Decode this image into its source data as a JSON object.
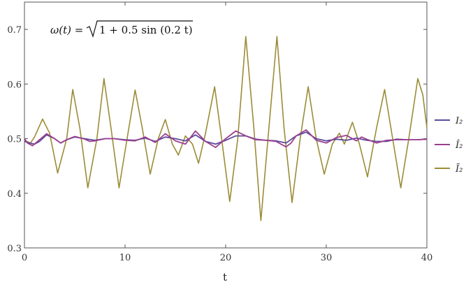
{
  "chart_data": {
    "type": "line",
    "xlabel": "t",
    "ylabel": "",
    "xlim": [
      0,
      40
    ],
    "ylim": [
      0.3,
      0.75
    ],
    "x_ticks": [
      0,
      10,
      20,
      30,
      40
    ],
    "y_ticks": [
      0.3,
      0.4,
      0.5,
      0.6,
      0.7
    ],
    "x_tick_labels": [
      "0",
      "10",
      "20",
      "30",
      "40"
    ],
    "y_tick_labels": [
      "0.3",
      "0.4",
      "0.5",
      "0.6",
      "0.7"
    ],
    "grid": false,
    "legend_position": "right",
    "annotation": {
      "prefix": "ω(t) =",
      "radicand": "1 + 0.5 sin (0.2 t)"
    },
    "series": [
      {
        "name": "I₂",
        "color": "#5b4b9a",
        "points": [
          [
            0,
            0.495
          ],
          [
            0.5,
            0.492
          ],
          [
            1,
            0.49
          ],
          [
            1.5,
            0.495
          ],
          [
            2.2,
            0.507
          ],
          [
            3,
            0.5
          ],
          [
            3.6,
            0.492
          ],
          [
            4.2,
            0.498
          ],
          [
            5,
            0.503
          ],
          [
            6,
            0.5
          ],
          [
            7,
            0.497
          ],
          [
            8,
            0.5
          ],
          [
            9,
            0.5
          ],
          [
            10,
            0.498
          ],
          [
            11,
            0.497
          ],
          [
            12,
            0.501
          ],
          [
            13,
            0.495
          ],
          [
            14,
            0.503
          ],
          [
            15,
            0.5
          ],
          [
            16,
            0.496
          ],
          [
            17,
            0.507
          ],
          [
            18,
            0.495
          ],
          [
            19,
            0.49
          ],
          [
            20,
            0.497
          ],
          [
            21,
            0.505
          ],
          [
            22,
            0.505
          ],
          [
            23,
            0.499
          ],
          [
            24,
            0.497
          ],
          [
            25,
            0.496
          ],
          [
            26,
            0.492
          ],
          [
            27,
            0.505
          ],
          [
            28,
            0.512
          ],
          [
            29,
            0.5
          ],
          [
            30,
            0.496
          ],
          [
            31,
            0.499
          ],
          [
            32,
            0.497
          ],
          [
            33,
            0.501
          ],
          [
            34,
            0.497
          ],
          [
            35,
            0.495
          ],
          [
            36,
            0.495
          ],
          [
            37,
            0.499
          ],
          [
            38,
            0.498
          ],
          [
            39,
            0.498
          ],
          [
            40,
            0.499
          ]
        ]
      },
      {
        "name": "Î₂",
        "color": "#9b3f8f",
        "points": [
          [
            0,
            0.5
          ],
          [
            0.3,
            0.492
          ],
          [
            0.8,
            0.487
          ],
          [
            1.5,
            0.498
          ],
          [
            2.2,
            0.509
          ],
          [
            3,
            0.5
          ],
          [
            3.6,
            0.492
          ],
          [
            4.2,
            0.498
          ],
          [
            5,
            0.504
          ],
          [
            6,
            0.499
          ],
          [
            6.5,
            0.495
          ],
          [
            7,
            0.496
          ],
          [
            8,
            0.5
          ],
          [
            9,
            0.5
          ],
          [
            10,
            0.497
          ],
          [
            11,
            0.496
          ],
          [
            12,
            0.503
          ],
          [
            13,
            0.493
          ],
          [
            14,
            0.509
          ],
          [
            15,
            0.496
          ],
          [
            16,
            0.49
          ],
          [
            17,
            0.514
          ],
          [
            18,
            0.495
          ],
          [
            19,
            0.484
          ],
          [
            20,
            0.5
          ],
          [
            21,
            0.514
          ],
          [
            22,
            0.505
          ],
          [
            23,
            0.498
          ],
          [
            24,
            0.497
          ],
          [
            25,
            0.495
          ],
          [
            26,
            0.485
          ],
          [
            26.5,
            0.492
          ],
          [
            27,
            0.505
          ],
          [
            28,
            0.516
          ],
          [
            29,
            0.497
          ],
          [
            30,
            0.492
          ],
          [
            31,
            0.502
          ],
          [
            32,
            0.506
          ],
          [
            33,
            0.496
          ],
          [
            33.5,
            0.503
          ],
          [
            34,
            0.499
          ],
          [
            35,
            0.492
          ],
          [
            36,
            0.497
          ],
          [
            37,
            0.498
          ],
          [
            38,
            0.498
          ],
          [
            39,
            0.498
          ],
          [
            40,
            0.499
          ]
        ]
      },
      {
        "name": "Ĩ₂",
        "color": "#9b8c37",
        "points": [
          [
            0,
            0.497
          ],
          [
            0.6,
            0.492
          ],
          [
            1,
            0.503
          ],
          [
            1.8,
            0.536
          ],
          [
            2.5,
            0.51
          ],
          [
            3.3,
            0.437
          ],
          [
            4.2,
            0.5
          ],
          [
            4.8,
            0.59
          ],
          [
            5.5,
            0.52
          ],
          [
            6.3,
            0.41
          ],
          [
            7.2,
            0.5
          ],
          [
            7.9,
            0.61
          ],
          [
            8.6,
            0.52
          ],
          [
            9.4,
            0.41
          ],
          [
            10.2,
            0.5
          ],
          [
            11,
            0.589
          ],
          [
            11.7,
            0.52
          ],
          [
            12.5,
            0.435
          ],
          [
            13.3,
            0.5
          ],
          [
            14,
            0.535
          ],
          [
            14.7,
            0.49
          ],
          [
            15.3,
            0.47
          ],
          [
            16,
            0.505
          ],
          [
            16.7,
            0.49
          ],
          [
            17.3,
            0.455
          ],
          [
            18,
            0.51
          ],
          [
            18.9,
            0.595
          ],
          [
            19.6,
            0.5
          ],
          [
            20.4,
            0.385
          ],
          [
            21.2,
            0.5
          ],
          [
            22,
            0.687
          ],
          [
            22.8,
            0.52
          ],
          [
            23.5,
            0.35
          ],
          [
            24.3,
            0.52
          ],
          [
            25.1,
            0.687
          ],
          [
            25.8,
            0.52
          ],
          [
            26.6,
            0.383
          ],
          [
            27.4,
            0.5
          ],
          [
            28.2,
            0.595
          ],
          [
            29,
            0.5
          ],
          [
            29.8,
            0.435
          ],
          [
            30.6,
            0.49
          ],
          [
            31.3,
            0.51
          ],
          [
            31.8,
            0.49
          ],
          [
            32.6,
            0.53
          ],
          [
            33.3,
            0.49
          ],
          [
            34.1,
            0.43
          ],
          [
            35,
            0.52
          ],
          [
            35.8,
            0.59
          ],
          [
            36.6,
            0.5
          ],
          [
            37.4,
            0.41
          ],
          [
            38.2,
            0.5
          ],
          [
            39.1,
            0.61
          ],
          [
            39.6,
            0.58
          ],
          [
            40,
            0.52
          ]
        ]
      }
    ]
  }
}
